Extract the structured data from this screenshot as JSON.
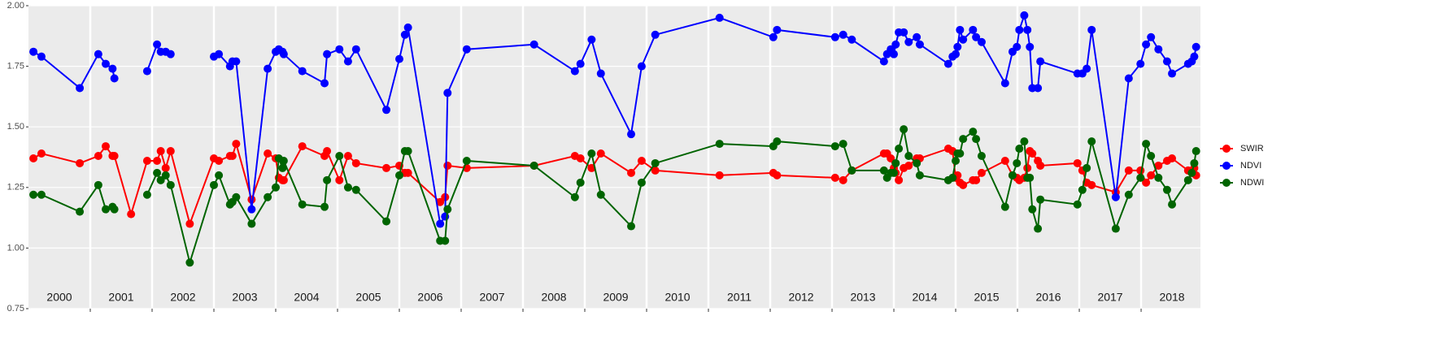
{
  "chart_data": {
    "type": "line",
    "x": [
      2000.08,
      2000.21,
      2000.83,
      2001.13,
      2001.25,
      2001.36,
      2001.39,
      2001.66,
      2001.92,
      2002.08,
      2002.14,
      2002.22,
      2002.3,
      2002.61,
      2003.0,
      2003.08,
      2003.26,
      2003.3,
      2003.36,
      2003.61,
      2003.87,
      2004.0,
      2004.05,
      2004.11,
      2004.13,
      2004.43,
      2004.79,
      2004.83,
      2005.03,
      2005.17,
      2005.3,
      2005.79,
      2006.0,
      2006.09,
      2006.14,
      2006.66,
      2006.74,
      2006.78,
      2007.09,
      2008.18,
      2008.84,
      2008.93,
      2009.11,
      2009.26,
      2009.75,
      2009.92,
      2010.14,
      2011.18,
      2012.05,
      2012.11,
      2013.05,
      2013.18,
      2013.32,
      2013.84,
      2013.89,
      2013.95,
      2014.0,
      2014.03,
      2014.08,
      2014.16,
      2014.24,
      2014.37,
      2014.42,
      2014.88,
      2014.95,
      2015.0,
      2015.03,
      2015.07,
      2015.12,
      2015.28,
      2015.33,
      2015.42,
      2015.8,
      2015.92,
      2015.99,
      2016.03,
      2016.11,
      2016.16,
      2016.2,
      2016.24,
      2016.33,
      2016.37,
      2016.97,
      2017.05,
      2017.12,
      2017.2,
      2017.59,
      2017.8,
      2017.99,
      2018.08,
      2018.16,
      2018.28,
      2018.42,
      2018.5,
      2018.76,
      2018.82,
      2018.86,
      2018.89
    ],
    "series": [
      {
        "name": "SWIR",
        "color": "#ff0000",
        "values": [
          1.37,
          1.39,
          1.35,
          1.38,
          1.42,
          1.38,
          1.38,
          1.14,
          1.36,
          1.36,
          1.4,
          1.33,
          1.4,
          1.1,
          1.37,
          1.36,
          1.38,
          1.38,
          1.43,
          1.2,
          1.39,
          1.37,
          1.29,
          1.28,
          1.28,
          1.42,
          1.38,
          1.4,
          1.28,
          1.38,
          1.35,
          1.33,
          1.34,
          1.31,
          1.31,
          1.19,
          1.21,
          1.34,
          1.33,
          1.34,
          1.38,
          1.37,
          1.33,
          1.39,
          1.31,
          1.36,
          1.32,
          1.3,
          1.31,
          1.3,
          1.29,
          1.28,
          1.32,
          1.39,
          1.39,
          1.37,
          1.33,
          1.31,
          1.28,
          1.33,
          1.34,
          1.37,
          1.37,
          1.41,
          1.4,
          1.29,
          1.3,
          1.27,
          1.26,
          1.28,
          1.28,
          1.31,
          1.36,
          1.3,
          1.29,
          1.28,
          1.29,
          1.33,
          1.4,
          1.39,
          1.36,
          1.34,
          1.35,
          1.32,
          1.27,
          1.26,
          1.23,
          1.32,
          1.32,
          1.27,
          1.3,
          1.34,
          1.36,
          1.37,
          1.32,
          1.31,
          1.33,
          1.3
        ]
      },
      {
        "name": "NDVI",
        "color": "#0000ff",
        "values": [
          1.81,
          1.79,
          1.66,
          1.8,
          1.76,
          1.74,
          1.7,
          null,
          1.73,
          1.84,
          1.81,
          1.81,
          1.8,
          null,
          1.79,
          1.8,
          1.75,
          1.77,
          1.77,
          1.16,
          1.74,
          1.81,
          1.82,
          1.81,
          1.8,
          1.73,
          1.68,
          1.8,
          1.82,
          1.77,
          1.82,
          1.57,
          1.78,
          1.88,
          1.91,
          1.1,
          1.13,
          1.64,
          1.82,
          1.84,
          1.73,
          1.76,
          1.86,
          1.72,
          1.47,
          1.75,
          1.88,
          1.95,
          1.87,
          1.9,
          1.87,
          1.88,
          1.86,
          1.77,
          1.8,
          1.82,
          1.8,
          1.84,
          1.89,
          1.89,
          1.85,
          1.87,
          1.84,
          1.76,
          1.79,
          1.8,
          1.83,
          1.9,
          1.86,
          1.9,
          1.87,
          1.85,
          1.68,
          1.81,
          1.83,
          1.9,
          1.96,
          1.9,
          1.83,
          1.66,
          1.66,
          1.77,
          1.72,
          1.72,
          1.74,
          1.9,
          1.21,
          1.7,
          1.76,
          1.84,
          1.87,
          1.82,
          1.77,
          1.72,
          1.76,
          1.77,
          1.79,
          1.83
        ]
      },
      {
        "name": "NDWI",
        "color": "#006400",
        "values": [
          1.22,
          1.22,
          1.15,
          1.26,
          1.16,
          1.17,
          1.16,
          null,
          1.22,
          1.31,
          1.28,
          1.3,
          1.26,
          0.94,
          1.26,
          1.3,
          1.18,
          1.19,
          1.21,
          1.1,
          1.21,
          1.25,
          1.37,
          1.33,
          1.36,
          1.18,
          1.17,
          1.28,
          1.38,
          1.25,
          1.24,
          1.11,
          1.3,
          1.4,
          1.4,
          1.03,
          1.03,
          1.16,
          1.36,
          1.34,
          1.21,
          1.27,
          1.39,
          1.22,
          1.09,
          1.27,
          1.35,
          1.43,
          1.42,
          1.44,
          1.42,
          1.43,
          1.32,
          1.32,
          1.29,
          1.31,
          1.31,
          1.35,
          1.41,
          1.49,
          1.38,
          1.35,
          1.3,
          1.28,
          1.29,
          1.36,
          1.39,
          1.39,
          1.45,
          1.48,
          1.45,
          1.38,
          1.17,
          1.3,
          1.35,
          1.41,
          1.44,
          1.29,
          1.29,
          1.16,
          1.08,
          1.2,
          1.18,
          1.24,
          1.33,
          1.44,
          1.08,
          1.22,
          1.29,
          1.43,
          1.38,
          1.29,
          1.24,
          1.18,
          1.28,
          1.31,
          1.35,
          1.4
        ]
      }
    ],
    "xlim": [
      2000,
      2018.96
    ],
    "xticks": [
      {
        "value": 2000.5,
        "label": "2000"
      },
      {
        "value": 2001.5,
        "label": "2001"
      },
      {
        "value": 2002.5,
        "label": "2002"
      },
      {
        "value": 2003.5,
        "label": "2003"
      },
      {
        "value": 2004.5,
        "label": "2004"
      },
      {
        "value": 2005.5,
        "label": "2005"
      },
      {
        "value": 2006.5,
        "label": "2006"
      },
      {
        "value": 2007.5,
        "label": "2007"
      },
      {
        "value": 2008.5,
        "label": "2008"
      },
      {
        "value": 2009.5,
        "label": "2009"
      },
      {
        "value": 2010.5,
        "label": "2010"
      },
      {
        "value": 2011.5,
        "label": "2011"
      },
      {
        "value": 2012.5,
        "label": "2012"
      },
      {
        "value": 2013.5,
        "label": "2013"
      },
      {
        "value": 2014.5,
        "label": "2014"
      },
      {
        "value": 2015.5,
        "label": "2015"
      },
      {
        "value": 2016.5,
        "label": "2016"
      },
      {
        "value": 2017.5,
        "label": "2017"
      },
      {
        "value": 2018.5,
        "label": "2018"
      }
    ],
    "xgrid": [
      2001,
      2002,
      2003,
      2004,
      2005,
      2006,
      2007,
      2008,
      2009,
      2010,
      2011,
      2012,
      2013,
      2014,
      2015,
      2016,
      2017,
      2018
    ],
    "ylim": [
      0.75,
      2.0
    ],
    "yticks": [
      0.75,
      {
        "value": 1,
        "label": "1.00"
      },
      1.25,
      {
        "value": 1.5,
        "label": "1.50"
      },
      1.75,
      {
        "value": 2,
        "label": "2.00"
      }
    ],
    "grid": true,
    "legend": "right"
  }
}
